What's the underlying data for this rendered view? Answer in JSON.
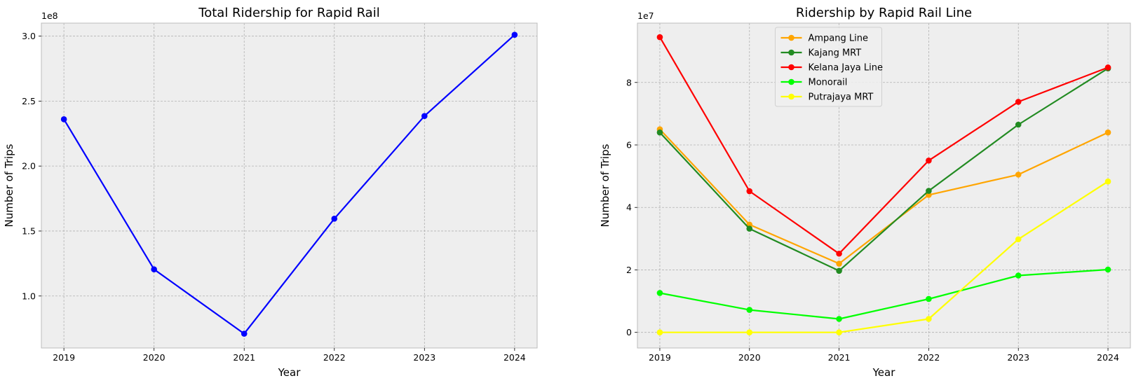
{
  "chart_data": [
    {
      "type": "line",
      "title": "Total Ridership for Rapid Rail",
      "xlabel": "Year",
      "ylabel": "Number of Trips",
      "offset_label": "1e8",
      "x": [
        2019,
        2020,
        2021,
        2022,
        2023,
        2024
      ],
      "xlim": [
        2018.75,
        2024.25
      ],
      "ylim": [
        0.6,
        3.1
      ],
      "yticks": [
        1.0,
        1.5,
        2.0,
        2.5,
        3.0
      ],
      "ytick_labels": [
        "1.0",
        "1.5",
        "2.0",
        "2.5",
        "3.0"
      ],
      "grid": true,
      "series": [
        {
          "color": "#0000ff",
          "values": [
            2.36,
            1.205,
            0.71,
            1.595,
            2.385,
            3.01
          ]
        }
      ]
    },
    {
      "type": "line",
      "title": "Ridership by Rapid Rail Line",
      "xlabel": "Year",
      "ylabel": "Number of Trips",
      "offset_label": "1e7",
      "x": [
        2019,
        2020,
        2021,
        2022,
        2023,
        2024
      ],
      "xlim": [
        2018.75,
        2024.25
      ],
      "ylim": [
        -0.5,
        9.9
      ],
      "yticks": [
        0,
        2,
        4,
        6,
        8
      ],
      "ytick_labels": [
        "0",
        "2",
        "4",
        "6",
        "8"
      ],
      "grid": true,
      "legend_position": "top-center",
      "series": [
        {
          "name": "Ampang Line",
          "color": "#ffa500",
          "values": [
            6.5,
            3.45,
            2.2,
            4.4,
            5.05,
            6.4
          ]
        },
        {
          "name": "Kajang MRT",
          "color": "#228b22",
          "values": [
            6.4,
            3.32,
            1.97,
            4.53,
            6.65,
            8.45
          ]
        },
        {
          "name": "Kelana Jaya Line",
          "color": "#ff0000",
          "values": [
            9.45,
            4.52,
            2.52,
            5.5,
            7.38,
            8.48
          ]
        },
        {
          "name": "Monorail",
          "color": "#00ff00",
          "values": [
            1.26,
            0.72,
            0.43,
            1.07,
            1.82,
            2.01
          ]
        },
        {
          "name": "Putrajaya MRT",
          "color": "#ffff00",
          "values": [
            0.0,
            0.0,
            0.0,
            0.43,
            2.98,
            4.83
          ]
        }
      ]
    }
  ]
}
